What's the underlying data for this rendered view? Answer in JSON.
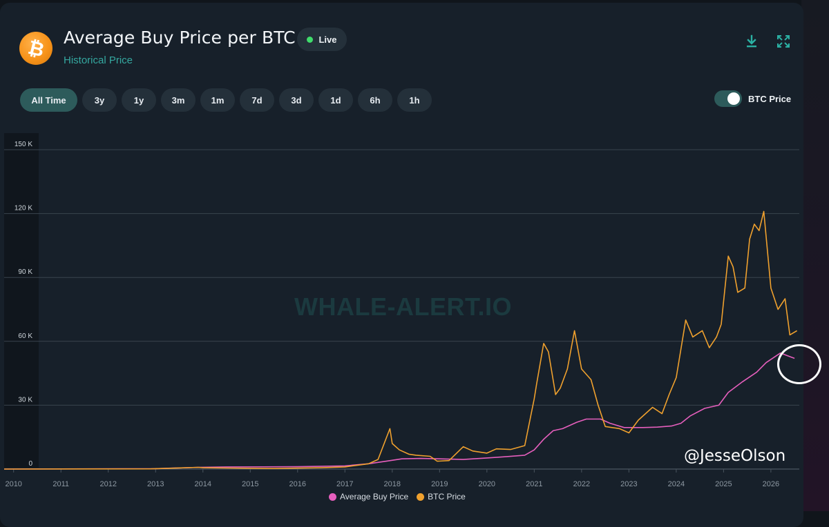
{
  "header": {
    "title": "Average Buy Price per BTC",
    "subtitle": "Historical Price",
    "live_label": "Live",
    "logo_icon": "bitcoin-logo"
  },
  "toolbar": {
    "download_icon": "download-icon",
    "fullscreen_icon": "fullscreen-icon"
  },
  "ranges": [
    "All Time",
    "3y",
    "1y",
    "3m",
    "1m",
    "7d",
    "3d",
    "1d",
    "6h",
    "1h"
  ],
  "active_range": "All Time",
  "toggle": {
    "label": "BTC Price",
    "state": "on"
  },
  "watermark": "WHALE-ALERT.IO",
  "annotation": {
    "handle": "@JesseOlson"
  },
  "colors": {
    "avg": "#e65fbd",
    "btc": "#f0a12e",
    "accent": "#2d5b5b",
    "live": "#3fdc6b",
    "highlight_circle": "#ffffff"
  },
  "chart_data": {
    "type": "line",
    "y_ticks": [
      "0",
      "30 K",
      "60 K",
      "90 K",
      "120 K",
      "150 K"
    ],
    "x_ticks": [
      "2010",
      "2011",
      "2012",
      "2013",
      "2014",
      "2015",
      "2016",
      "2017",
      "2018",
      "2019",
      "2020",
      "2021",
      "2022",
      "2023",
      "2024",
      "2025",
      "2026"
    ],
    "ylim": [
      0,
      150000
    ],
    "xlim": [
      2009.8,
      2026.6
    ],
    "grid": true,
    "legend_position": "bottom",
    "series": [
      {
        "name": "Average Buy Price",
        "color": "#e65fbd",
        "x": [
          2009.8,
          2013.0,
          2013.9,
          2014.5,
          2016.0,
          2017.0,
          2017.5,
          2017.9,
          2018.2,
          2018.6,
          2019.0,
          2019.5,
          2020.0,
          2020.4,
          2020.8,
          2021.0,
          2021.2,
          2021.4,
          2021.6,
          2021.9,
          2022.1,
          2022.4,
          2022.6,
          2022.9,
          2023.3,
          2023.6,
          2023.9,
          2024.1,
          2024.3,
          2024.6,
          2024.9,
          2025.1,
          2025.4,
          2025.7,
          2025.9,
          2026.2,
          2026.5
        ],
        "y": [
          0,
          200,
          800,
          1000,
          1100,
          1500,
          2500,
          3800,
          4800,
          5000,
          4800,
          4500,
          5200,
          5800,
          6500,
          9000,
          14000,
          18000,
          19000,
          22000,
          23500,
          23500,
          21500,
          19500,
          19500,
          19700,
          20200,
          21500,
          25000,
          28500,
          30000,
          36000,
          41000,
          45500,
          50000,
          54500,
          52000
        ]
      },
      {
        "name": "BTC Price",
        "color": "#f0a12e",
        "x": [
          2009.8,
          2012.9,
          2013.9,
          2014.0,
          2014.5,
          2015.5,
          2016.5,
          2017.0,
          2017.5,
          2017.7,
          2017.95,
          2018.0,
          2018.15,
          2018.35,
          2018.5,
          2018.8,
          2018.95,
          2019.2,
          2019.5,
          2019.7,
          2020.0,
          2020.2,
          2020.5,
          2020.8,
          2021.0,
          2021.05,
          2021.2,
          2021.3,
          2021.45,
          2021.55,
          2021.7,
          2021.85,
          2022.0,
          2022.2,
          2022.35,
          2022.5,
          2022.8,
          2023.0,
          2023.2,
          2023.5,
          2023.7,
          2023.85,
          2024.0,
          2024.2,
          2024.35,
          2024.55,
          2024.7,
          2024.85,
          2024.95,
          2025.1,
          2025.2,
          2025.3,
          2025.45,
          2025.55,
          2025.65,
          2025.75,
          2025.85,
          2026.0,
          2026.15,
          2026.3,
          2026.4,
          2026.55
        ],
        "y": [
          0,
          100,
          800,
          600,
          500,
          250,
          600,
          1000,
          2500,
          4500,
          19000,
          12000,
          9000,
          7000,
          6500,
          6000,
          3700,
          4000,
          10500,
          8500,
          7500,
          9500,
          9200,
          11000,
          33000,
          40000,
          59000,
          55000,
          35000,
          38000,
          47000,
          65000,
          47000,
          42000,
          30000,
          20000,
          19000,
          17000,
          23000,
          29000,
          26000,
          35000,
          43000,
          70000,
          62000,
          65000,
          57000,
          62000,
          68000,
          100000,
          95000,
          83000,
          85000,
          108000,
          115000,
          112000,
          121000,
          85000,
          75000,
          80000,
          63000,
          65000
        ]
      }
    ]
  }
}
